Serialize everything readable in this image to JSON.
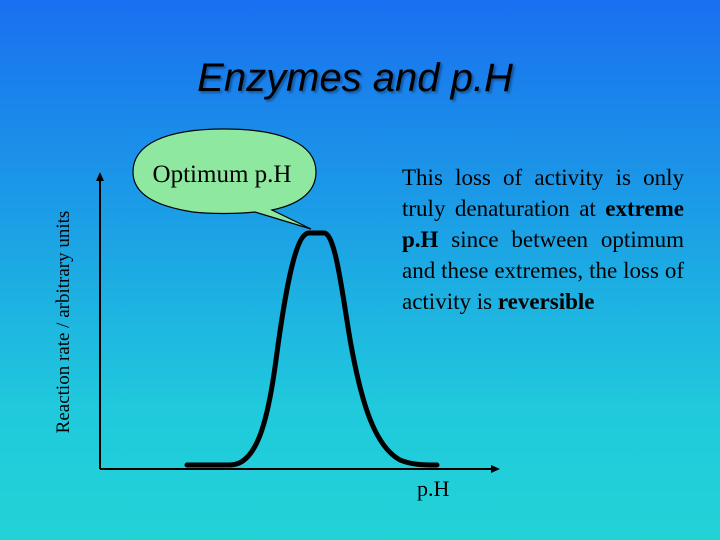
{
  "slide": {
    "title": "Enzymes and p.H"
  },
  "diagram": {
    "y_axis_label": "Reaction rate / arbitrary units",
    "x_axis_label": "p.H",
    "callout_label": "Optimum p.H",
    "curve_shape": "bell",
    "colors": {
      "callout_fill": "#8fe8a0",
      "curve": "#000000",
      "background_top": "#1a6ff0",
      "background_bottom": "#22d3d6"
    }
  },
  "explanation": {
    "part1": "This loss of activity is only truly denaturation at ",
    "bold1": "extreme p.H",
    "part2": " since between optimum and these extremes, the loss of activity is ",
    "bold2": "reversible"
  }
}
